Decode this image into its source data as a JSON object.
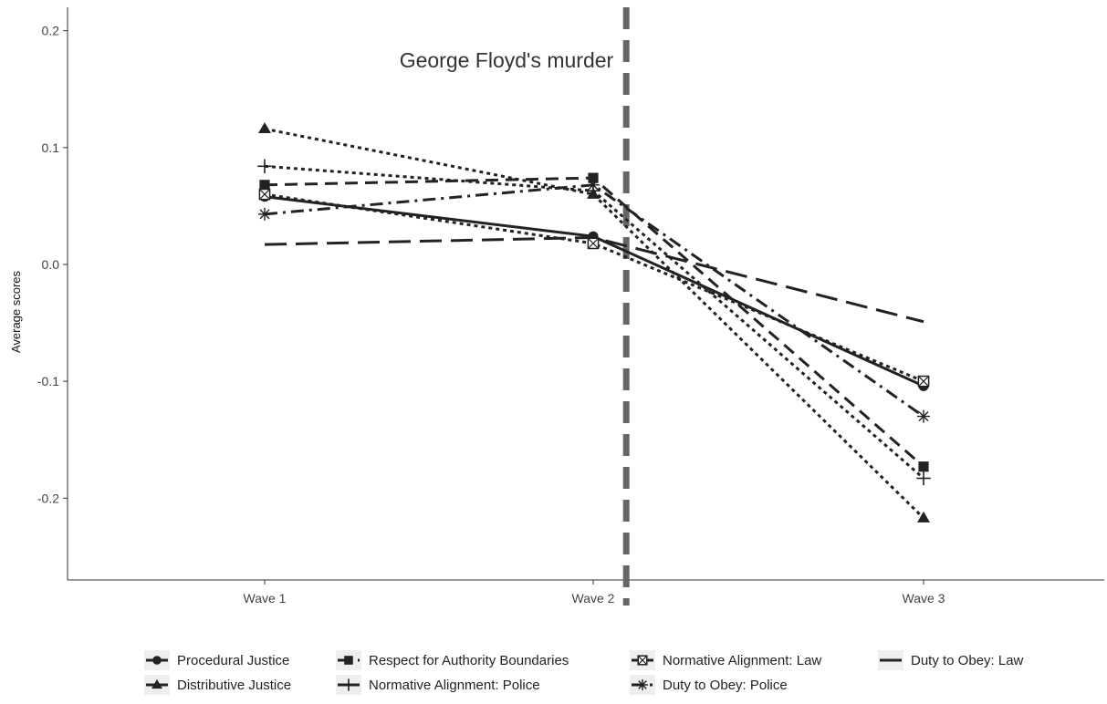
{
  "chart_data": {
    "type": "line",
    "title": "",
    "xlabel": "",
    "ylabel": "Average scores",
    "categories": [
      "Wave 1",
      "Wave 2",
      "Wave 3"
    ],
    "ylim": [
      -0.27,
      0.22
    ],
    "yticks": [
      -0.2,
      -0.1,
      0.0,
      0.1,
      0.2
    ],
    "ytick_labels": [
      "-0.2",
      "-0.1",
      "0.0",
      "0.1",
      "0.2"
    ],
    "grid": false,
    "legend_position": "bottom",
    "annotation": {
      "text": "George Floyd's murder",
      "x_category_position": 2.1
    },
    "series": [
      {
        "name": "Procedural Justice",
        "values": [
          0.058,
          0.024,
          -0.104
        ],
        "marker": "circle",
        "dash": "solid-long"
      },
      {
        "name": "Distributive Justice",
        "values": [
          0.116,
          0.06,
          -0.217
        ],
        "marker": "triangle",
        "dash": "dotted"
      },
      {
        "name": "Respect for Authority Boundaries",
        "values": [
          0.068,
          0.074,
          -0.173
        ],
        "marker": "square",
        "dash": "dashed"
      },
      {
        "name": "Normative Alignment: Police",
        "values": [
          0.084,
          0.063,
          -0.183
        ],
        "marker": "plus",
        "dash": "dotted"
      },
      {
        "name": "Normative Alignment: Law",
        "values": [
          0.06,
          0.018,
          -0.1
        ],
        "marker": "square-x",
        "dash": "dotted"
      },
      {
        "name": "Duty to Obey: Police",
        "values": [
          0.043,
          0.068,
          -0.13
        ],
        "marker": "asterisk",
        "dash": "dashdot"
      },
      {
        "name": "Duty to Obey: Law",
        "values": [
          0.017,
          0.023,
          -0.049
        ],
        "marker": "none",
        "dash": "longdash"
      }
    ]
  }
}
